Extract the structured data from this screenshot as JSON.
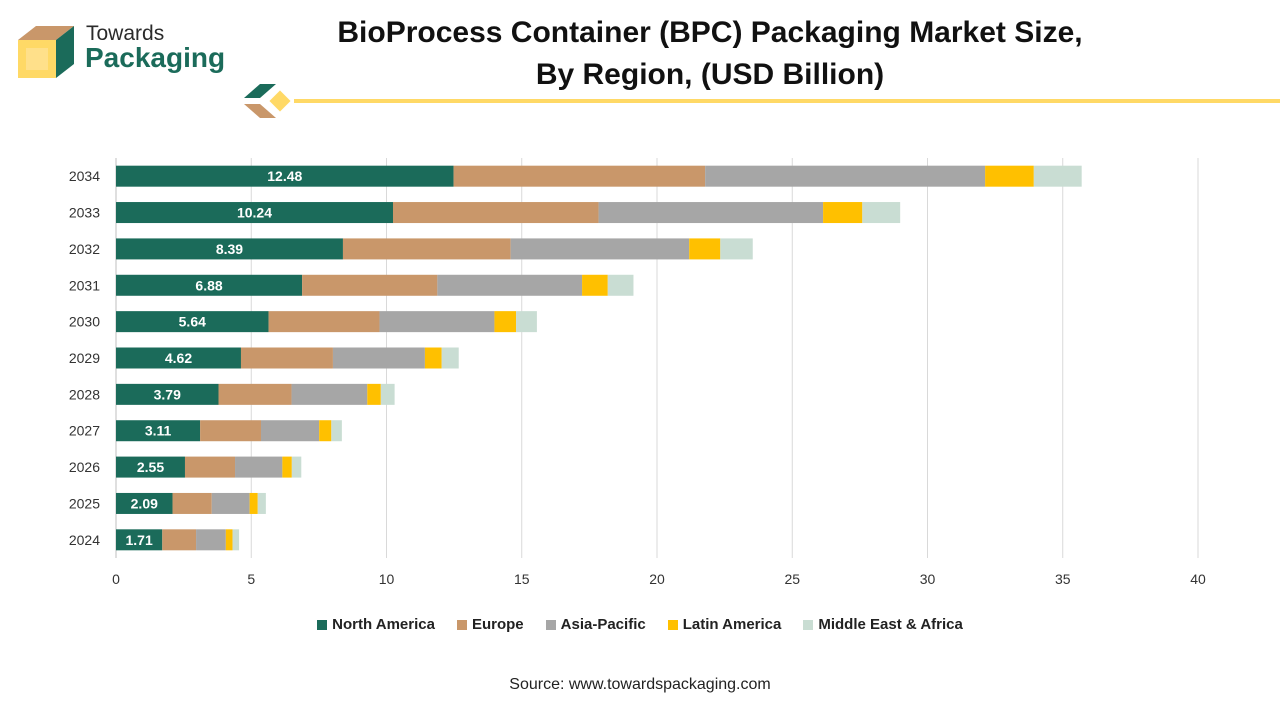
{
  "logo": {
    "line1": "Towards",
    "line2": "Packaging"
  },
  "title_line1": "BioProcess Container (BPC) Packaging Market Size,",
  "title_line2": "By Region, (USD Billion)",
  "source": "Source: www.towardspackaging.com",
  "colors": {
    "north_america": "#1b6b5a",
    "europe": "#c9976a",
    "asia_pacific": "#a6a6a6",
    "latin_america": "#ffc000",
    "middle_east_africa": "#c9ddd3",
    "logo_green": "#1b6b5a",
    "logo_tan": "#c9976a",
    "logo_yellow": "#ffd966"
  },
  "chart_data": {
    "type": "bar",
    "orientation": "horizontal",
    "stacked": true,
    "categories": [
      "2034",
      "2033",
      "2032",
      "2031",
      "2030",
      "2029",
      "2028",
      "2027",
      "2026",
      "2025",
      "2024"
    ],
    "series": [
      {
        "name": "North America",
        "values": [
          12.48,
          10.24,
          8.39,
          6.88,
          5.64,
          4.62,
          3.79,
          3.11,
          2.55,
          2.09,
          1.71
        ]
      },
      {
        "name": "Europe",
        "values": [
          9.3,
          7.6,
          6.2,
          5.0,
          4.1,
          3.4,
          2.7,
          2.25,
          1.85,
          1.45,
          1.25
        ]
      },
      {
        "name": "Asia-Pacific",
        "values": [
          10.35,
          8.3,
          6.6,
          5.35,
          4.25,
          3.4,
          2.8,
          2.15,
          1.75,
          1.4,
          1.1
        ]
      },
      {
        "name": "Latin America",
        "values": [
          1.8,
          1.45,
          1.15,
          0.95,
          0.8,
          0.62,
          0.5,
          0.45,
          0.35,
          0.3,
          0.25
        ]
      },
      {
        "name": "Middle East & Africa",
        "values": [
          1.77,
          1.4,
          1.2,
          0.95,
          0.77,
          0.63,
          0.51,
          0.39,
          0.35,
          0.3,
          0.24
        ]
      }
    ],
    "data_labels_series": "North America",
    "xlim": [
      0,
      40
    ],
    "xticks": [
      "0",
      "5",
      "10",
      "15",
      "20",
      "25",
      "30",
      "35",
      "40"
    ],
    "xlabel": "",
    "ylabel": "",
    "grid": "vertical",
    "legend_position": "bottom"
  }
}
